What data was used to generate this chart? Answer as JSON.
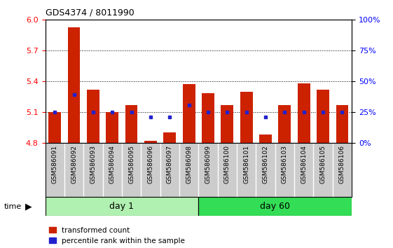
{
  "title": "GDS4374 / 8011990",
  "samples": [
    "GSM586091",
    "GSM586092",
    "GSM586093",
    "GSM586094",
    "GSM586095",
    "GSM586096",
    "GSM586097",
    "GSM586098",
    "GSM586099",
    "GSM586100",
    "GSM586101",
    "GSM586102",
    "GSM586103",
    "GSM586104",
    "GSM586105",
    "GSM586106"
  ],
  "red_values": [
    5.1,
    5.93,
    5.32,
    5.1,
    5.17,
    4.82,
    4.9,
    5.37,
    5.28,
    5.17,
    5.3,
    4.88,
    5.17,
    5.38,
    5.32,
    5.17
  ],
  "blue_values": [
    5.1,
    5.27,
    5.1,
    5.1,
    5.1,
    5.05,
    5.05,
    5.17,
    5.1,
    5.1,
    5.1,
    5.05,
    5.1,
    5.1,
    5.1,
    5.1
  ],
  "day1_samples": 8,
  "day60_samples": 8,
  "ylim_left": [
    4.8,
    6.0
  ],
  "ylim_right": [
    0,
    100
  ],
  "yticks_left": [
    4.8,
    5.1,
    5.4,
    5.7,
    6.0
  ],
  "yticks_right": [
    0,
    25,
    50,
    75,
    100
  ],
  "bar_color": "#cc2200",
  "dot_color": "#2222cc",
  "day1_color": "#b0f0b0",
  "day60_color": "#33dd55",
  "label_bg_color": "#cccccc",
  "bar_base": 4.8,
  "bar_width": 0.65
}
